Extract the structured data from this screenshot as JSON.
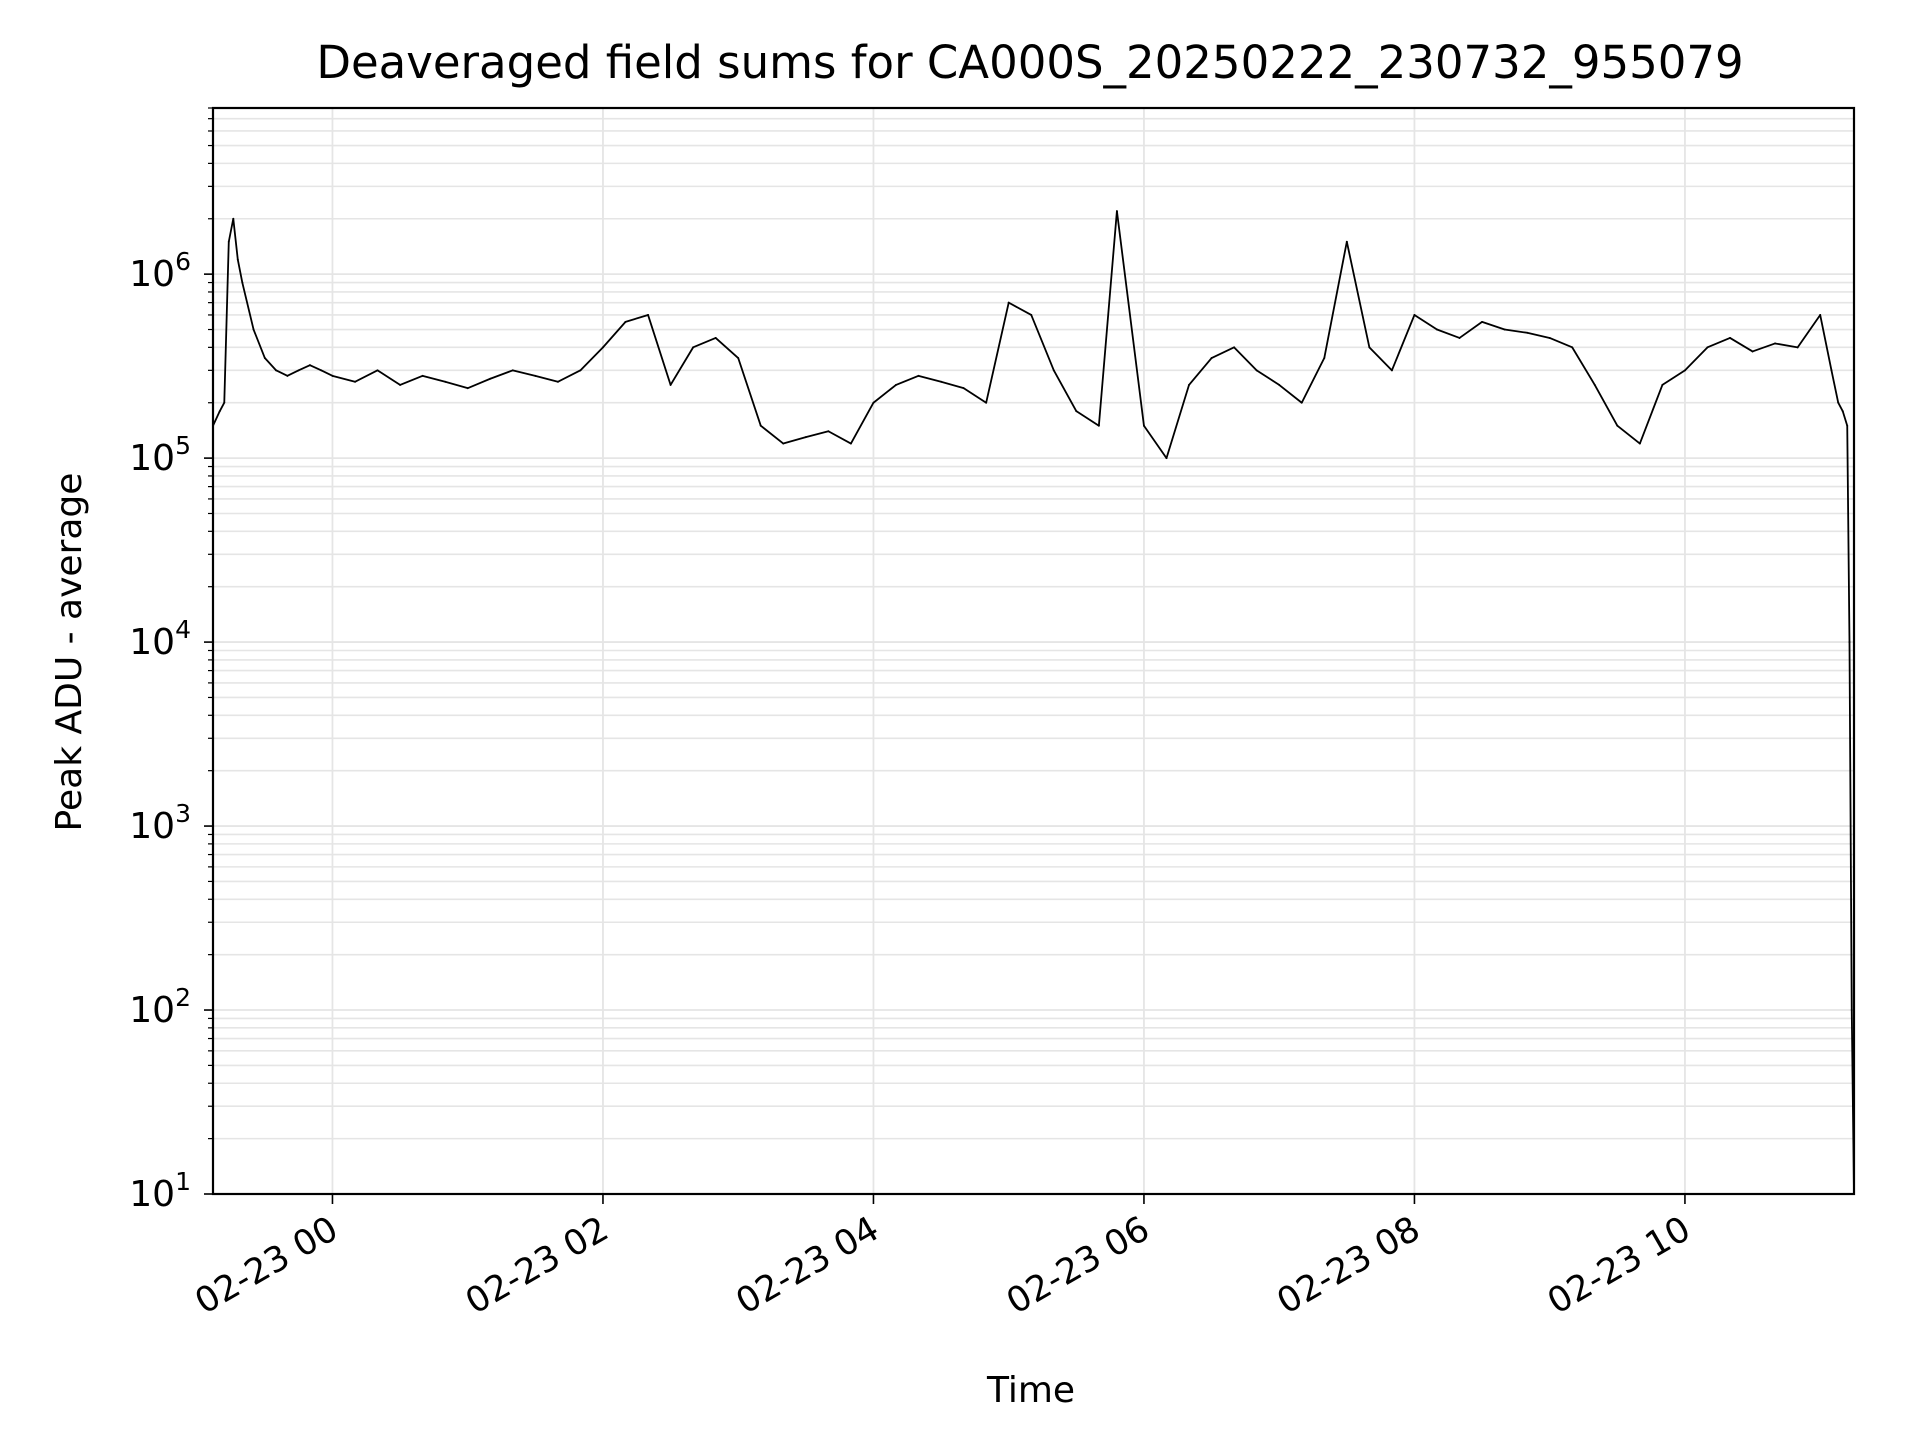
{
  "chart_data": {
    "type": "line",
    "title": "Deaveraged field sums for CA000S_20250222_230732_955079",
    "xlabel": "Time",
    "ylabel": "Peak ADU - average",
    "yscale": "log",
    "ylim": [
      10,
      8000000
    ],
    "xlim": [
      "2025-02-22 23:07",
      "2025-02-23 11:15"
    ],
    "grid": true,
    "line_color": "#000000",
    "grid_color": "#e5e5e5",
    "x_ticks": [
      {
        "t": "2025-02-23 00:00",
        "label": "02-23 00"
      },
      {
        "t": "2025-02-23 02:00",
        "label": "02-23 02"
      },
      {
        "t": "2025-02-23 04:00",
        "label": "02-23 04"
      },
      {
        "t": "2025-02-23 06:00",
        "label": "02-23 06"
      },
      {
        "t": "2025-02-23 08:00",
        "label": "02-23 08"
      },
      {
        "t": "2025-02-23 10:00",
        "label": "02-23 10"
      }
    ],
    "y_ticks": [
      {
        "value": 10,
        "base": "10",
        "exp": "1"
      },
      {
        "value": 100,
        "base": "10",
        "exp": "2"
      },
      {
        "value": 1000,
        "base": "10",
        "exp": "3"
      },
      {
        "value": 10000,
        "base": "10",
        "exp": "4"
      },
      {
        "value": 100000,
        "base": "10",
        "exp": "5"
      },
      {
        "value": 1000000,
        "base": "10",
        "exp": "6"
      }
    ],
    "series": [
      {
        "x": [
          "2025-02-22 23:07",
          "2025-02-22 23:10",
          "2025-02-22 23:12",
          "2025-02-22 23:14",
          "2025-02-22 23:16",
          "2025-02-22 23:18",
          "2025-02-22 23:20",
          "2025-02-22 23:25",
          "2025-02-22 23:30",
          "2025-02-22 23:35",
          "2025-02-22 23:40",
          "2025-02-22 23:45",
          "2025-02-22 23:50",
          "2025-02-22 23:55",
          "2025-02-23 00:00",
          "2025-02-23 00:10",
          "2025-02-23 00:20",
          "2025-02-23 00:30",
          "2025-02-23 00:40",
          "2025-02-23 00:50",
          "2025-02-23 01:00",
          "2025-02-23 01:10",
          "2025-02-23 01:20",
          "2025-02-23 01:30",
          "2025-02-23 01:40",
          "2025-02-23 01:50",
          "2025-02-23 02:00",
          "2025-02-23 02:10",
          "2025-02-23 02:20",
          "2025-02-23 02:30",
          "2025-02-23 02:40",
          "2025-02-23 02:50",
          "2025-02-23 03:00",
          "2025-02-23 03:10",
          "2025-02-23 03:20",
          "2025-02-23 03:30",
          "2025-02-23 03:40",
          "2025-02-23 03:50",
          "2025-02-23 04:00",
          "2025-02-23 04:10",
          "2025-02-23 04:20",
          "2025-02-23 04:30",
          "2025-02-23 04:40",
          "2025-02-23 04:50",
          "2025-02-23 05:00",
          "2025-02-23 05:10",
          "2025-02-23 05:20",
          "2025-02-23 05:30",
          "2025-02-23 05:40",
          "2025-02-23 05:48",
          "2025-02-23 06:00",
          "2025-02-23 06:10",
          "2025-02-23 06:20",
          "2025-02-23 06:30",
          "2025-02-23 06:40",
          "2025-02-23 06:50",
          "2025-02-23 07:00",
          "2025-02-23 07:10",
          "2025-02-23 07:20",
          "2025-02-23 07:30",
          "2025-02-23 07:40",
          "2025-02-23 07:50",
          "2025-02-23 08:00",
          "2025-02-23 08:10",
          "2025-02-23 08:20",
          "2025-02-23 08:30",
          "2025-02-23 08:40",
          "2025-02-23 08:50",
          "2025-02-23 09:00",
          "2025-02-23 09:10",
          "2025-02-23 09:20",
          "2025-02-23 09:30",
          "2025-02-23 09:40",
          "2025-02-23 09:50",
          "2025-02-23 10:00",
          "2025-02-23 10:10",
          "2025-02-23 10:20",
          "2025-02-23 10:30",
          "2025-02-23 10:40",
          "2025-02-23 10:50",
          "2025-02-23 11:00",
          "2025-02-23 11:05",
          "2025-02-23 11:08",
          "2025-02-23 11:10",
          "2025-02-23 11:12",
          "2025-02-23 11:13",
          "2025-02-23 11:14",
          "2025-02-23 11:15"
        ],
        "y": [
          150000,
          180000,
          200000,
          1500000,
          2000000,
          1200000,
          900000,
          500000,
          350000,
          300000,
          280000,
          300000,
          320000,
          300000,
          280000,
          260000,
          300000,
          250000,
          280000,
          260000,
          240000,
          270000,
          300000,
          280000,
          260000,
          300000,
          400000,
          550000,
          600000,
          250000,
          400000,
          450000,
          350000,
          150000,
          120000,
          130000,
          140000,
          120000,
          200000,
          250000,
          280000,
          260000,
          240000,
          200000,
          700000,
          600000,
          300000,
          180000,
          150000,
          2200000,
          150000,
          100000,
          250000,
          350000,
          400000,
          300000,
          250000,
          200000,
          350000,
          1500000,
          400000,
          300000,
          600000,
          500000,
          450000,
          550000,
          500000,
          480000,
          450000,
          400000,
          250000,
          150000,
          120000,
          250000,
          300000,
          400000,
          450000,
          380000,
          420000,
          400000,
          600000,
          300000,
          200000,
          180000,
          150000,
          10000,
          100,
          10
        ]
      }
    ]
  }
}
